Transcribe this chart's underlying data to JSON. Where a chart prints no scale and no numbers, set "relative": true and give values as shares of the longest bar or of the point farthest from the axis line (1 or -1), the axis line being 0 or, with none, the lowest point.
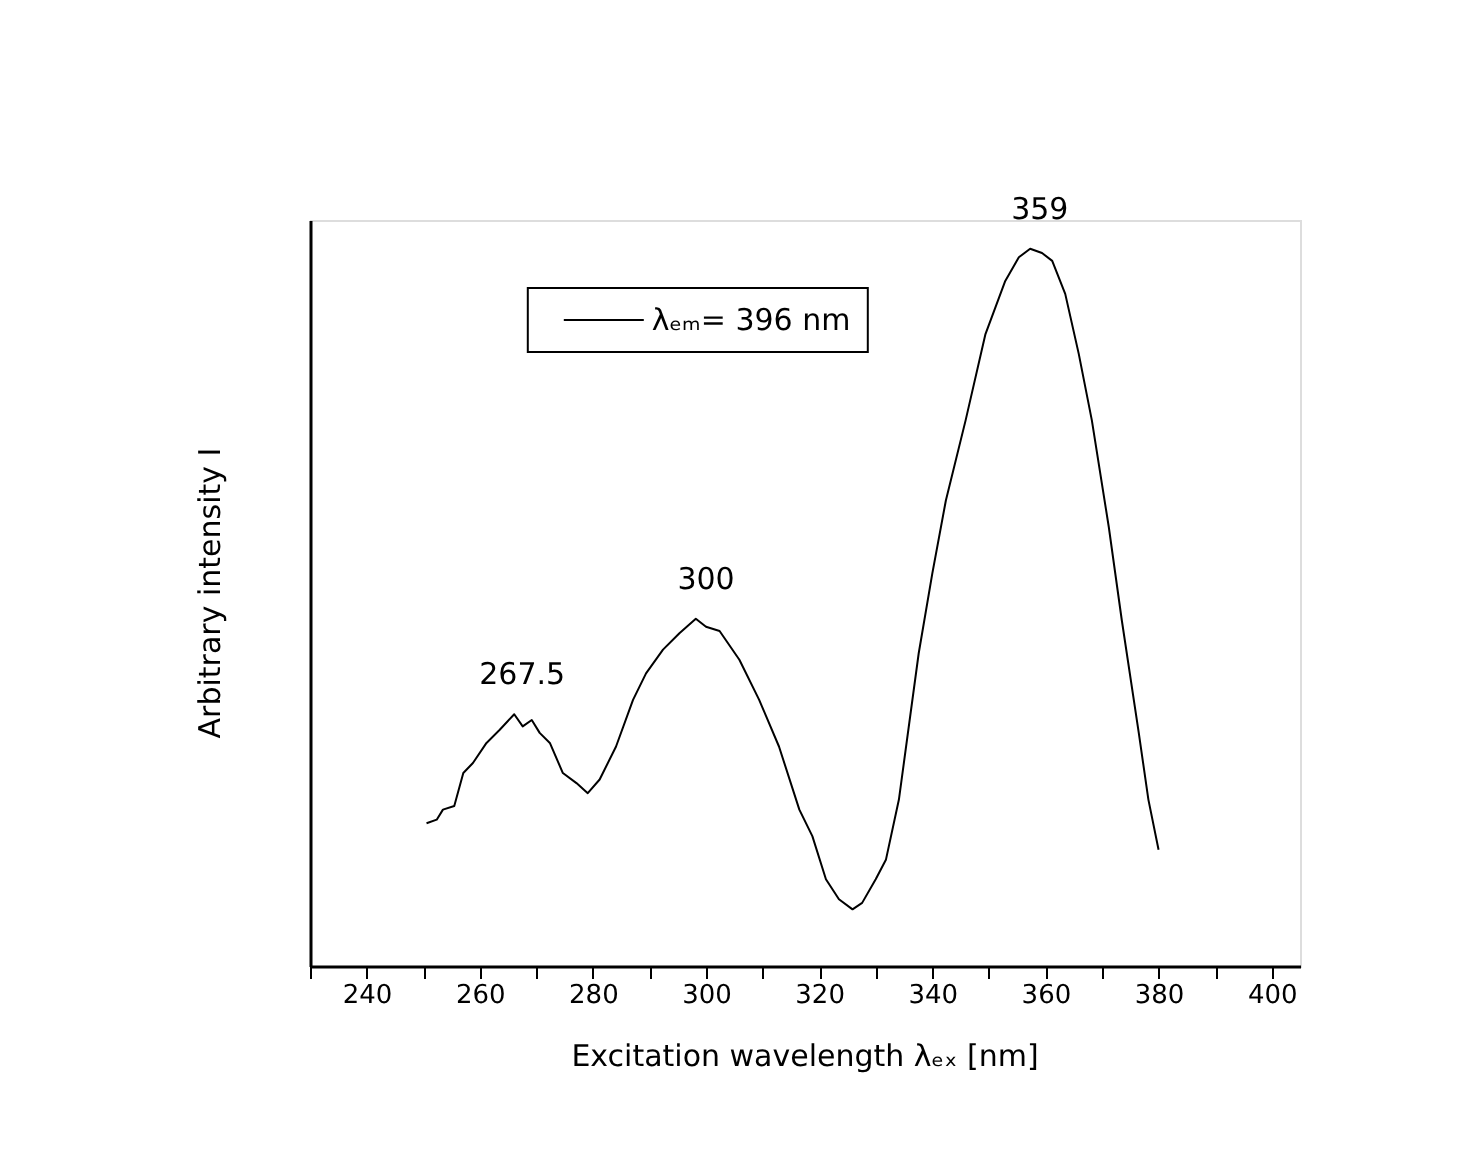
{
  "chart_data": {
    "type": "line",
    "relative": true,
    "xlabel": "Excitation wavelength λₑₓ [nm]",
    "ylabel": "Arbitrary intensity I",
    "xlim": [
      230,
      405
    ],
    "xticks": [
      {
        "value": 230,
        "label": null
      },
      240,
      {
        "value": 250,
        "label": null
      },
      260,
      {
        "value": 270,
        "label": null
      },
      280,
      {
        "value": 290,
        "label": null
      },
      300,
      {
        "value": 310,
        "label": null
      },
      320,
      {
        "value": 330,
        "label": null
      },
      340,
      {
        "value": 350,
        "label": null
      },
      360,
      {
        "value": 370,
        "label": null
      },
      380,
      {
        "value": 390,
        "label": null
      },
      400
    ],
    "grid": false,
    "legend": "top",
    "marker": "none",
    "line_style": "solid",
    "x": [
      250.6,
      252.4,
      253.5,
      255.5,
      257.1,
      258.8,
      261.2,
      263.5,
      266.1,
      267.6,
      269.2,
      270.6,
      272.4,
      274.7,
      277.1,
      279.1,
      281.2,
      284.1,
      287.1,
      289.4,
      292.4,
      295.3,
      298.2,
      300.0,
      302.4,
      305.9,
      309.4,
      312.9,
      316.5,
      318.8,
      321.2,
      323.5,
      325.9,
      327.6,
      330.0,
      331.8,
      334.1,
      337.6,
      340.0,
      342.4,
      345.9,
      349.4,
      352.9,
      355.3,
      357.3,
      359.4,
      361.2,
      363.5,
      365.9,
      368.2,
      371.2,
      373.5,
      376.5,
      378.2,
      380.0
    ],
    "series": [
      {
        "name": "λₑₘ= 396 nm",
        "color": "#000000",
        "values": [
          0.199,
          0.204,
          0.218,
          0.223,
          0.269,
          0.283,
          0.311,
          0.329,
          0.351,
          0.334,
          0.343,
          0.325,
          0.311,
          0.269,
          0.255,
          0.241,
          0.26,
          0.306,
          0.371,
          0.408,
          0.441,
          0.464,
          0.484,
          0.473,
          0.467,
          0.427,
          0.371,
          0.306,
          0.218,
          0.181,
          0.121,
          0.093,
          0.079,
          0.088,
          0.121,
          0.148,
          0.232,
          0.436,
          0.547,
          0.649,
          0.761,
          0.881,
          0.955,
          0.988,
          1.0,
          0.994,
          0.983,
          0.937,
          0.853,
          0.761,
          0.612,
          0.482,
          0.325,
          0.232,
          0.162
        ]
      }
    ],
    "annotations": [
      {
        "text": "267.5",
        "x": 267.5,
        "y": 0.351
      },
      {
        "text": "300",
        "x": 300,
        "y": 0.484
      },
      {
        "text": "359",
        "x": 359,
        "y": 1.0
      }
    ]
  }
}
